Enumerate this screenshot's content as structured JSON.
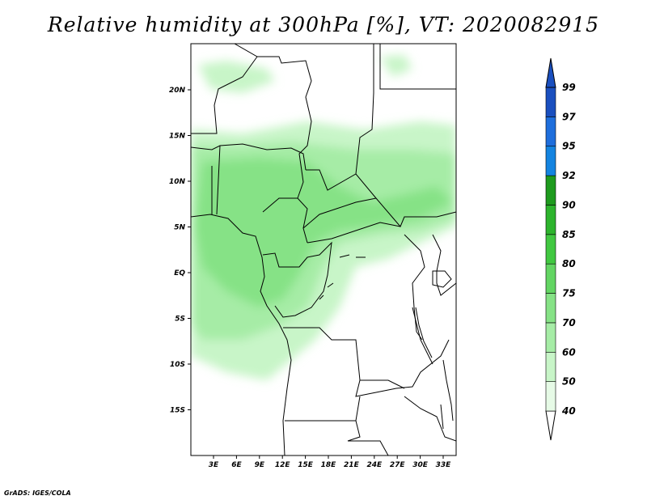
{
  "title": "Relative humidity at 300hPa [%], VT: 2020082915",
  "credit": "GrADS: IGES/COLA",
  "map": {
    "lon_range": [
      0,
      34.5
    ],
    "lat_range": [
      -20,
      24.5
    ],
    "x_ticks": [
      "3E",
      "6E",
      "9E",
      "12E",
      "15E",
      "18E",
      "21E",
      "24E",
      "27E",
      "30E",
      "33E"
    ],
    "y_ticks": [
      "20N",
      "15N",
      "10N",
      "5N",
      "EQ",
      "5S",
      "10S",
      "15S"
    ]
  },
  "colorbar": {
    "levels": [
      "40",
      "50",
      "60",
      "70",
      "75",
      "80",
      "85",
      "90",
      "92",
      "95",
      "97",
      "99"
    ],
    "colors": [
      "#ffffff",
      "#e6fae6",
      "#c8f5c8",
      "#a6eca6",
      "#86e286",
      "#63d563",
      "#41c841",
      "#2db42d",
      "#1e9b1e",
      "#1484e0",
      "#1e6edc",
      "#1a4fbf"
    ]
  }
}
